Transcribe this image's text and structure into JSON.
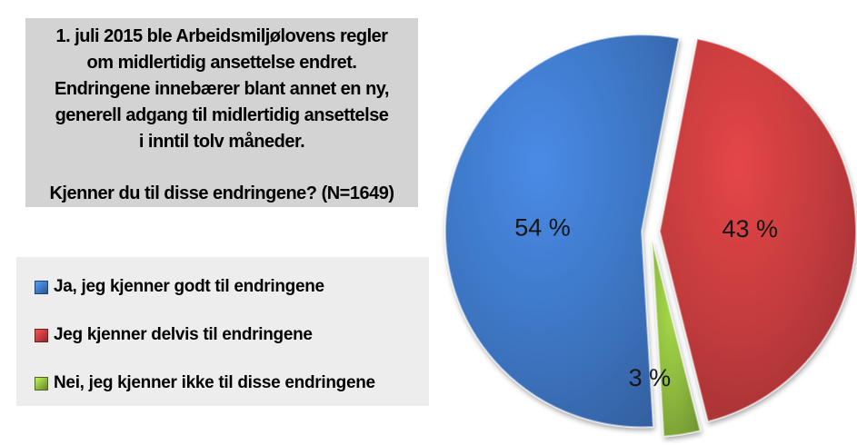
{
  "question_box": {
    "lines": [
      "1. juli 2015 ble Arbeidsmiljølovens regler",
      "om midlertidig ansettelse endret.",
      "Endringene innebærer blant annet en ny,",
      "generell adgang til midlertidig ansettelse",
      "i inntil tolv måneder."
    ],
    "question": "Kjenner du til disse endringene? (N=1649)"
  },
  "chart_data": {
    "type": "pie",
    "unit": "%",
    "slices": [
      {
        "label": "Ja, jeg kjenner godt til endringene",
        "value": 54,
        "display": "54 %",
        "color": "#3E76C4"
      },
      {
        "label": "Jeg kjenner delvis til endringene",
        "value": 43,
        "display": "43 %",
        "color": "#C23B3D"
      },
      {
        "label": "Nei, jeg kjenner ikke til disse endringene",
        "value": 3,
        "display": "3 %",
        "color": "#8DB93E"
      }
    ],
    "layout": {
      "start_angle_deg": 176.6,
      "direction": "clockwise",
      "exploded": true,
      "legend_position": "left",
      "data_labels": "inside",
      "grid": "off"
    }
  },
  "colors": {
    "question_box_bg": "#D3D3D3",
    "legend_bg": "#EDEDED",
    "background": "#FFFFFF",
    "text": "#000000"
  }
}
